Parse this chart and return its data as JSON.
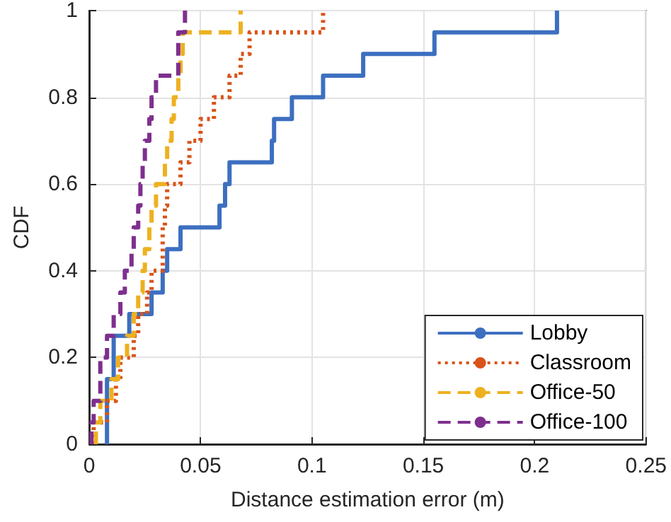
{
  "chart_data": {
    "type": "step",
    "xlabel": "Distance estimation error (m)",
    "ylabel": "CDF",
    "xlim": [
      0,
      0.25
    ],
    "xticks": [
      0,
      0.05,
      0.1,
      0.15,
      0.2,
      0.25
    ],
    "ylim": [
      0,
      1
    ],
    "yticks": [
      0,
      0.2,
      0.4,
      0.6,
      0.8,
      1
    ],
    "grid": true,
    "legend": "bottom right",
    "series": [
      {
        "name": "Lobby",
        "color": "#3d6fc0",
        "line_style": "solid",
        "x": [
          0.008,
          0.008,
          0.011,
          0.018,
          0.028,
          0.033,
          0.035,
          0.041,
          0.0585,
          0.061,
          0.063,
          0.082,
          0.083,
          0.091,
          0.105,
          0.123,
          0.155,
          0.21
        ],
        "values": [
          0,
          0.15,
          0.25,
          0.3,
          0.35,
          0.4,
          0.45,
          0.5,
          0.55,
          0.6,
          0.65,
          0.7,
          0.75,
          0.8,
          0.85,
          0.9,
          0.95,
          1
        ]
      },
      {
        "name": "Classroom",
        "color": "#d95319",
        "line_style": "dotted",
        "x": [
          0.002,
          0.002,
          0.008,
          0.012,
          0.014,
          0.02,
          0.022,
          0.026,
          0.028,
          0.033,
          0.033,
          0.034,
          0.035,
          0.041,
          0.045,
          0.05,
          0.056,
          0.063,
          0.068,
          0.072,
          0.105
        ],
        "values": [
          0,
          0.05,
          0.1,
          0.15,
          0.2,
          0.25,
          0.3,
          0.35,
          0.4,
          0.45,
          0.5,
          0.55,
          0.6,
          0.65,
          0.7,
          0.75,
          0.8,
          0.85,
          0.9,
          0.95,
          1
        ]
      },
      {
        "name": "Office-50",
        "color": "#edb120",
        "line_style": "dashed",
        "x": [
          0.003,
          0.003,
          0.005,
          0.01,
          0.013,
          0.017,
          0.02,
          0.022,
          0.024,
          0.025,
          0.027,
          0.028,
          0.03,
          0.034,
          0.035,
          0.037,
          0.038,
          0.04,
          0.041,
          0.042,
          0.068
        ],
        "values": [
          0,
          0.05,
          0.1,
          0.15,
          0.2,
          0.25,
          0.3,
          0.35,
          0.4,
          0.45,
          0.5,
          0.55,
          0.6,
          0.65,
          0.7,
          0.75,
          0.8,
          0.85,
          0.9,
          0.95,
          1
        ]
      },
      {
        "name": "Office-100",
        "color": "#7e2f8e",
        "line_style": "dashed",
        "x": [
          0.001,
          0.001,
          0.002,
          0.005,
          0.008,
          0.011,
          0.014,
          0.016,
          0.019,
          0.02,
          0.022,
          0.023,
          0.024,
          0.025,
          0.027,
          0.028,
          0.03,
          0.04,
          0.04,
          0.043
        ],
        "values": [
          0,
          0.05,
          0.1,
          0.2,
          0.25,
          0.3,
          0.35,
          0.4,
          0.45,
          0.5,
          0.55,
          0.6,
          0.65,
          0.7,
          0.75,
          0.8,
          0.85,
          0.9,
          0.95,
          1
        ]
      }
    ]
  }
}
